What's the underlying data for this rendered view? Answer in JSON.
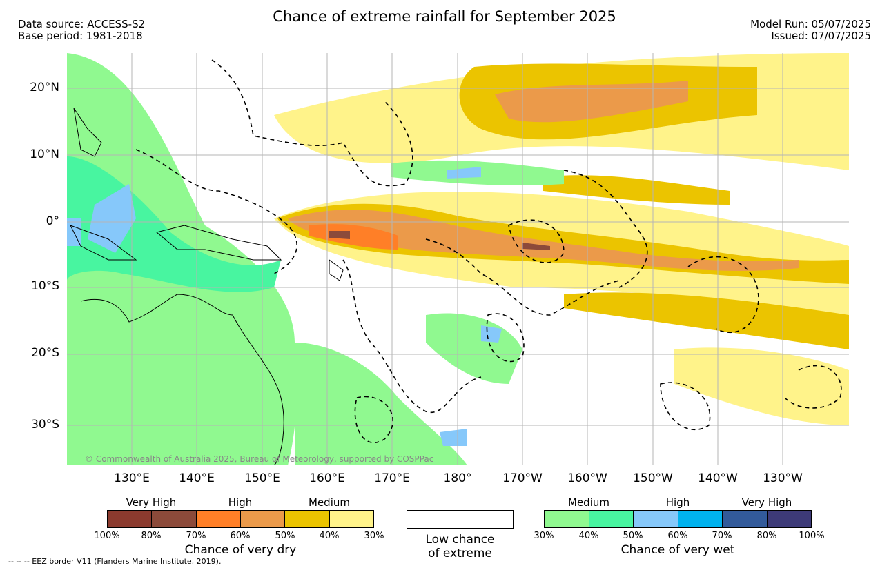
{
  "header": {
    "title": "Chance of extreme rainfall for September 2025",
    "source_line": "Data source: ACCESS-S2",
    "base_line": "Base period: 1981-2018",
    "model_run": "Model Run: 05/07/2025",
    "issued": "Issued: 07/07/2025"
  },
  "map": {
    "longitude_labels": [
      "130°E",
      "140°E",
      "150°E",
      "160°E",
      "170°E",
      "180°",
      "170°W",
      "160°W",
      "150°W",
      "140°W",
      "130°W"
    ],
    "latitude_labels": [
      "20°N",
      "10°N",
      "0°",
      "10°S",
      "20°S",
      "30°S"
    ],
    "copyright": "© Commonwealth of Australia 2025, Bureau of Meteorology, supported by COSPPac"
  },
  "legend": {
    "dry": {
      "headers": [
        "Very High",
        "High",
        "Medium"
      ],
      "colors": [
        "#8b3a2e",
        "#8c4a3a",
        "#ff7f27",
        "#eb9a4a",
        "#ebc400",
        "#fff38a"
      ],
      "ticks": [
        "100%",
        "80%",
        "70%",
        "60%",
        "50%",
        "40%",
        "30%"
      ],
      "caption": "Chance of very dry"
    },
    "low": {
      "line1": "Low chance",
      "line2": "of extreme"
    },
    "wet": {
      "headers": [
        "Medium",
        "High",
        "Very High"
      ],
      "colors": [
        "#90f990",
        "#48f5a0",
        "#86c8fa",
        "#00b2ee",
        "#325a9a",
        "#3d3a78"
      ],
      "ticks": [
        "30%",
        "40%",
        "50%",
        "60%",
        "70%",
        "80%",
        "100%"
      ],
      "caption": "Chance of very wet"
    },
    "eez_note": "--  --  -- EEZ border V11 (Flanders Marine Institute, 2019)."
  }
}
